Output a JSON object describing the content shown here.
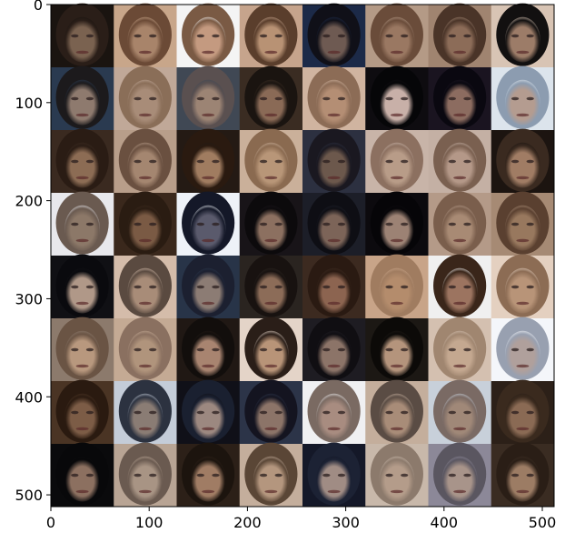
{
  "chart_data": {
    "type": "image",
    "title": "",
    "xlabel": "",
    "ylabel": "",
    "xlim": [
      0,
      512
    ],
    "ylim": [
      512,
      0
    ],
    "x_ticks": [
      0,
      100,
      200,
      300,
      400,
      500
    ],
    "y_ticks": [
      0,
      100,
      200,
      300,
      400,
      500
    ],
    "grid_rows": 8,
    "grid_cols": 8,
    "cell_size": 64,
    "content": "8x8 grid of generated face images",
    "tiles": [
      [
        {
          "bg": "#1a1410",
          "skin": "#7a6250",
          "hair": "#2a1e18"
        },
        {
          "bg": "#c8a68a",
          "skin": "#a8846a",
          "hair": "#6b4a36"
        },
        {
          "bg": "#f4f4f4",
          "skin": "#c49a80",
          "hair": "#7a5a44"
        },
        {
          "bg": "#c6a48c",
          "skin": "#b89274",
          "hair": "#5a3e2c"
        },
        {
          "bg": "#1c2a48",
          "skin": "#6e5a52",
          "hair": "#101018"
        },
        {
          "bg": "#b49a86",
          "skin": "#9a7862",
          "hair": "#6a4c3a"
        },
        {
          "bg": "#a08470",
          "skin": "#8c6c58",
          "hair": "#4a3428"
        },
        {
          "bg": "#d8c4b4",
          "skin": "#9c7c68",
          "hair": "#121010"
        }
      ],
      [
        {
          "bg": "#2a3a50",
          "skin": "#8e7a6e",
          "hair": "#1c1a1c"
        },
        {
          "bg": "#c0a898",
          "skin": "#a88c78",
          "hair": "#8a6e58"
        },
        {
          "bg": "#404854",
          "skin": "#9c8474",
          "hair": "#5a5050"
        },
        {
          "bg": "#3a2c22",
          "skin": "#8a6a56",
          "hair": "#1a1410"
        },
        {
          "bg": "#d0b4a0",
          "skin": "#b48e74",
          "hair": "#8c6c56"
        },
        {
          "bg": "#0e0c10",
          "skin": "#c8b0a8",
          "hair": "#060608"
        },
        {
          "bg": "#1a1420",
          "skin": "#8c6c60",
          "hair": "#0a0810"
        },
        {
          "bg": "#dce4ec",
          "skin": "#b49c90",
          "hair": "#8c9cb0"
        }
      ],
      [
        {
          "bg": "#3a2a20",
          "skin": "#8c6c54",
          "hair": "#2a1c14"
        },
        {
          "bg": "#b89e8a",
          "skin": "#a48670",
          "hair": "#6a5040"
        },
        {
          "bg": "#241a14",
          "skin": "#a07c60",
          "hair": "#2a1a10"
        },
        {
          "bg": "#cab09a",
          "skin": "#b89678",
          "hair": "#8a6a50"
        },
        {
          "bg": "#2c3040",
          "skin": "#6c584c",
          "hair": "#1a1820"
        },
        {
          "bg": "#c8b4a8",
          "skin": "#b89c88",
          "hair": "#8c7060"
        },
        {
          "bg": "#c4b0a4",
          "skin": "#b49888",
          "hair": "#7a6050"
        },
        {
          "bg": "#1c1410",
          "skin": "#a07c64",
          "hair": "#3a2a20"
        }
      ],
      [
        {
          "bg": "#e8e8ec",
          "skin": "#8c7868",
          "hair": "#6a5a50"
        },
        {
          "bg": "#3a281c",
          "skin": "#7a5a44",
          "hair": "#2a1c12"
        },
        {
          "bg": "#eef2f8",
          "skin": "#5a5a6c",
          "hair": "#141828"
        },
        {
          "bg": "#181418",
          "skin": "#8c7060",
          "hair": "#0c0a0c"
        },
        {
          "bg": "#1c1e28",
          "skin": "#7c6458",
          "hair": "#0e0e14"
        },
        {
          "bg": "#0c0a0e",
          "skin": "#9c8274",
          "hair": "#060508"
        },
        {
          "bg": "#b49a88",
          "skin": "#a88a74",
          "hair": "#7a5e4c"
        },
        {
          "bg": "#a68a74",
          "skin": "#98785e",
          "hair": "#5a4030"
        }
      ],
      [
        {
          "bg": "#101014",
          "skin": "#b09888",
          "hair": "#0a0a0e"
        },
        {
          "bg": "#d4bcaa",
          "skin": "#a88c78",
          "hair": "#5a4a40"
        },
        {
          "bg": "#283448",
          "skin": "#8c7c74",
          "hair": "#1c2030"
        },
        {
          "bg": "#2a2420",
          "skin": "#8c6c58",
          "hair": "#181210"
        },
        {
          "bg": "#3c2a20",
          "skin": "#8c6450",
          "hair": "#2a1a12"
        },
        {
          "bg": "#c8a488",
          "skin": "#b48c6c",
          "hair": "#a07c60"
        },
        {
          "bg": "#f0f0f0",
          "skin": "#9c7460",
          "hair": "#3a261a"
        },
        {
          "bg": "#e4d0c0",
          "skin": "#b89478",
          "hair": "#8c6c54"
        }
      ],
      [
        {
          "bg": "#8c7a6c",
          "skin": "#b8987e",
          "hair": "#6a5444"
        },
        {
          "bg": "#c4aa94",
          "skin": "#b0947c",
          "hair": "#8a7060"
        },
        {
          "bg": "#201814",
          "skin": "#a88470",
          "hair": "#120e0c"
        },
        {
          "bg": "#e4d4c8",
          "skin": "#b89478",
          "hair": "#2a1e18"
        },
        {
          "bg": "#1e1c22",
          "skin": "#8c7468",
          "hair": "#100e12"
        },
        {
          "bg": "#1c1814",
          "skin": "#b4947c",
          "hair": "#0c0a08"
        },
        {
          "bg": "#d4c0b0",
          "skin": "#c4a890",
          "hair": "#a08670"
        },
        {
          "bg": "#f4f6fa",
          "skin": "#b0a09c",
          "hair": "#98a0b0"
        }
      ],
      [
        {
          "bg": "#4a3424",
          "skin": "#7c5c46",
          "hair": "#2a1a10"
        },
        {
          "bg": "#c4ccd8",
          "skin": "#8a7c74",
          "hair": "#2c3240"
        },
        {
          "bg": "#101018",
          "skin": "#9c8880",
          "hair": "#1a2030"
        },
        {
          "bg": "#2c3448",
          "skin": "#8c7468",
          "hair": "#141420"
        },
        {
          "bg": "#f0f0f2",
          "skin": "#a88c80",
          "hair": "#7a6a62"
        },
        {
          "bg": "#c4ae9c",
          "skin": "#a88c78",
          "hair": "#5a4c44"
        },
        {
          "bg": "#c8d0da",
          "skin": "#a08878",
          "hair": "#7a6a64"
        },
        {
          "bg": "#2c2018",
          "skin": "#8a6a54",
          "hair": "#3a2a1e"
        }
      ],
      [
        {
          "bg": "#0a0a0c",
          "skin": "#8c7060",
          "hair": "#08080a"
        },
        {
          "bg": "#b8a494",
          "skin": "#a89484",
          "hair": "#6a5a50"
        },
        {
          "bg": "#2c2018",
          "skin": "#a07c64",
          "hair": "#1c140e"
        },
        {
          "bg": "#c4ae9c",
          "skin": "#b4967e",
          "hair": "#5a4636"
        },
        {
          "bg": "#141828",
          "skin": "#a08c84",
          "hair": "#1c2234"
        },
        {
          "bg": "#c8b8aa",
          "skin": "#b49c8a",
          "hair": "#8c7a6c"
        },
        {
          "bg": "#8c8898",
          "skin": "#a8948a",
          "hair": "#5a5660"
        },
        {
          "bg": "#3a2c22",
          "skin": "#9c7c64",
          "hair": "#2a1e16"
        }
      ]
    ]
  }
}
